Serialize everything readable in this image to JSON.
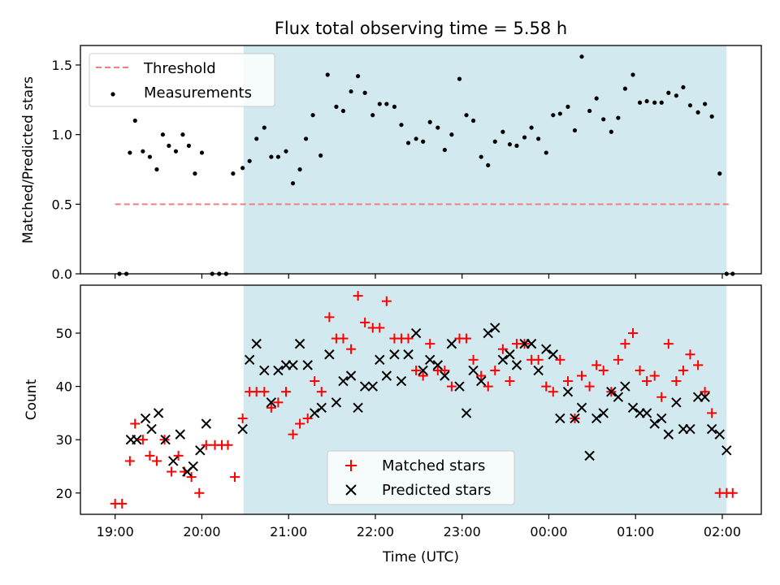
{
  "chart_data": [
    {
      "type": "scatter",
      "title": "Flux total observing time = 5.58 h",
      "xlabel": "",
      "ylabel": "Matched/Predicted stars",
      "ylim": [
        0,
        1.64
      ],
      "yticks": [
        "0.0",
        "0.5",
        "1.0",
        "1.5"
      ],
      "ytick_values": [
        0,
        0.5,
        1.0,
        1.5
      ],
      "shaded_region_hours": [
        20.48,
        26.05
      ],
      "shade_color": "#d3e9f0",
      "threshold": {
        "name": "Threshold",
        "value": 0.5,
        "x_range": [
          19.0,
          26.1
        ],
        "color": "#f08080",
        "style": "dashed"
      },
      "legend_placement": "top-left",
      "legend": [
        "Threshold",
        "Measurements"
      ],
      "series": [
        {
          "name": "Measurements",
          "color": "#000000",
          "marker": "dot",
          "x": [
            19.05,
            19.13,
            19.17,
            19.23,
            19.32,
            19.4,
            19.48,
            19.55,
            19.62,
            19.7,
            19.78,
            19.85,
            19.92,
            20.0,
            20.12,
            20.2,
            20.28,
            20.36,
            20.47,
            20.55,
            20.63,
            20.72,
            20.8,
            20.88,
            20.97,
            21.05,
            21.13,
            21.2,
            21.28,
            21.37,
            21.45,
            21.55,
            21.63,
            21.72,
            21.8,
            21.88,
            21.97,
            22.05,
            22.13,
            22.22,
            22.3,
            22.38,
            22.47,
            22.55,
            22.63,
            22.72,
            22.8,
            22.88,
            22.97,
            23.05,
            23.13,
            23.22,
            23.3,
            23.38,
            23.47,
            23.55,
            23.63,
            23.72,
            23.8,
            23.88,
            23.97,
            24.05,
            24.13,
            24.22,
            24.3,
            24.38,
            24.47,
            24.55,
            24.63,
            24.72,
            24.8,
            24.88,
            24.97,
            25.05,
            25.13,
            25.22,
            25.3,
            25.38,
            25.47,
            25.55,
            25.63,
            25.72,
            25.8,
            25.88,
            25.97,
            26.05,
            26.12
          ],
          "y": [
            0.0,
            0.0,
            0.87,
            1.1,
            0.88,
            0.84,
            0.75,
            1.0,
            0.92,
            0.88,
            1.0,
            0.92,
            0.72,
            0.87,
            0.0,
            0.0,
            0.0,
            0.72,
            0.76,
            0.81,
            0.97,
            1.05,
            0.84,
            0.84,
            0.88,
            0.65,
            0.75,
            0.97,
            1.14,
            0.85,
            1.43,
            1.2,
            1.17,
            1.31,
            1.42,
            1.3,
            1.14,
            1.22,
            1.22,
            1.2,
            1.07,
            0.94,
            0.97,
            0.95,
            1.09,
            1.05,
            0.89,
            1.0,
            1.4,
            1.14,
            1.1,
            0.84,
            0.78,
            0.95,
            1.02,
            0.93,
            0.92,
            0.98,
            1.05,
            0.97,
            0.87,
            1.14,
            1.15,
            1.2,
            1.03,
            1.56,
            1.17,
            1.26,
            1.11,
            1.02,
            1.12,
            1.33,
            1.43,
            1.23,
            1.24,
            1.23,
            1.23,
            1.3,
            1.28,
            1.34,
            1.21,
            1.16,
            1.22,
            1.13,
            0.72,
            0.0,
            0.0
          ]
        }
      ]
    },
    {
      "type": "scatter",
      "title": "",
      "xlabel": "Time (UTC)",
      "ylabel": "Count",
      "ylim": [
        16,
        59
      ],
      "yticks": [
        "20",
        "30",
        "40",
        "50"
      ],
      "ytick_values": [
        20,
        30,
        40,
        50
      ],
      "xlim": [
        18.6,
        26.45
      ],
      "xticks": [
        "19:00",
        "20:00",
        "21:00",
        "22:00",
        "23:00",
        "00:00",
        "01:00",
        "02:00"
      ],
      "xtick_values": [
        19,
        20,
        21,
        22,
        23,
        24,
        25,
        26
      ],
      "shaded_region_hours": [
        20.48,
        26.05
      ],
      "legend_placement": "lower center",
      "legend": [
        "Matched stars",
        "Predicted stars"
      ],
      "series": [
        {
          "name": "Matched stars",
          "color": "#ff0000",
          "marker": "plus",
          "x": [
            19.0,
            19.08,
            19.17,
            19.23,
            19.32,
            19.4,
            19.48,
            19.57,
            19.65,
            19.73,
            19.8,
            19.88,
            19.97,
            20.05,
            20.15,
            20.23,
            20.3,
            20.38,
            20.47,
            20.55,
            20.63,
            20.72,
            20.8,
            20.88,
            20.97,
            21.05,
            21.13,
            21.22,
            21.3,
            21.38,
            21.47,
            21.55,
            21.63,
            21.72,
            21.8,
            21.88,
            21.97,
            22.05,
            22.13,
            22.22,
            22.3,
            22.38,
            22.47,
            22.55,
            22.63,
            22.72,
            22.8,
            22.88,
            22.97,
            23.05,
            23.13,
            23.22,
            23.3,
            23.38,
            23.47,
            23.55,
            23.63,
            23.72,
            23.8,
            23.88,
            23.97,
            24.05,
            24.13,
            24.22,
            24.3,
            24.38,
            24.47,
            24.55,
            24.63,
            24.72,
            24.8,
            24.88,
            24.97,
            25.05,
            25.13,
            25.22,
            25.3,
            25.38,
            25.47,
            25.55,
            25.63,
            25.72,
            25.8,
            25.88,
            25.97,
            26.05,
            26.12
          ],
          "y": [
            18,
            18,
            26,
            33,
            30,
            27,
            26,
            30,
            24,
            27,
            24,
            23,
            20,
            29,
            29,
            29,
            29,
            23,
            34,
            39,
            39,
            39,
            36,
            37,
            39,
            31,
            33,
            34,
            41,
            39,
            53,
            49,
            49,
            47,
            57,
            52,
            51,
            51,
            56,
            49,
            49,
            49,
            43,
            42,
            48,
            43,
            43,
            40,
            49,
            49,
            45,
            42,
            40,
            43,
            47,
            41,
            48,
            48,
            45,
            45,
            40,
            39,
            45,
            41,
            34,
            42,
            40,
            44,
            43,
            39,
            45,
            48,
            50,
            43,
            41,
            42,
            38,
            48,
            41,
            43,
            46,
            44,
            39,
            35,
            20,
            20,
            20
          ]
        },
        {
          "name": "Predicted stars",
          "color": "#000000",
          "marker": "x",
          "x": [
            19.18,
            19.25,
            19.35,
            19.42,
            19.5,
            19.58,
            19.67,
            19.75,
            19.83,
            19.9,
            19.98,
            20.05,
            20.47,
            20.55,
            20.63,
            20.72,
            20.8,
            20.88,
            20.97,
            21.05,
            21.13,
            21.22,
            21.3,
            21.38,
            21.47,
            21.55,
            21.63,
            21.72,
            21.8,
            21.88,
            21.97,
            22.05,
            22.13,
            22.22,
            22.3,
            22.38,
            22.47,
            22.55,
            22.63,
            22.72,
            22.8,
            22.88,
            22.97,
            23.05,
            23.13,
            23.22,
            23.3,
            23.38,
            23.47,
            23.55,
            23.63,
            23.72,
            23.8,
            23.88,
            23.97,
            24.05,
            24.13,
            24.22,
            24.3,
            24.38,
            24.47,
            24.55,
            24.63,
            24.72,
            24.8,
            24.88,
            24.97,
            25.05,
            25.13,
            25.22,
            25.3,
            25.38,
            25.47,
            25.55,
            25.63,
            25.72,
            25.8,
            25.88,
            25.97,
            26.05
          ],
          "y": [
            30,
            30,
            34,
            32,
            35,
            30,
            26,
            31,
            24,
            25,
            28,
            33,
            32,
            45,
            48,
            43,
            37,
            43,
            44,
            44,
            48,
            44,
            35,
            36,
            46,
            37,
            41,
            42,
            36,
            40,
            40,
            45,
            42,
            46,
            41,
            46,
            50,
            43,
            45,
            44,
            42,
            48,
            40,
            35,
            43,
            41,
            50,
            51,
            45,
            46,
            44,
            48,
            48,
            43,
            47,
            46,
            34,
            39,
            34,
            36,
            27,
            34,
            35,
            39,
            38,
            40,
            36,
            35,
            35,
            33,
            34,
            31,
            37,
            32,
            32,
            38,
            38,
            32,
            31,
            28
          ]
        }
      ]
    }
  ]
}
